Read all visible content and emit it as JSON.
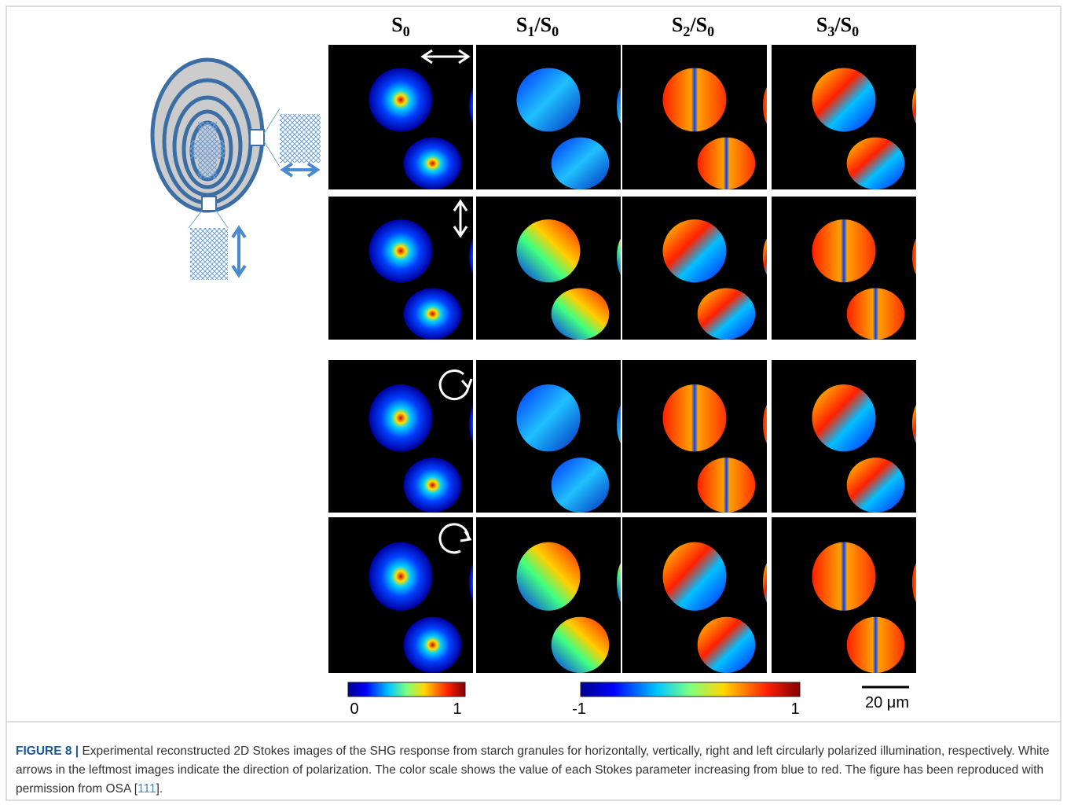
{
  "figure": {
    "headers": [
      [
        "S",
        "0"
      ],
      [
        "S",
        "1",
        "/S",
        "0"
      ],
      [
        "S",
        "2",
        "/S",
        "0"
      ],
      [
        "S",
        "3",
        "/S",
        "0"
      ]
    ],
    "colorbars": [
      {
        "min_label": "0",
        "max_label": "1"
      },
      {
        "min_label": "-1",
        "max_label": "1"
      }
    ],
    "scale_bar": "20 μm"
  },
  "caption": {
    "label": "FIGURE 8 |",
    "text_before": " Experimental reconstructed 2D Stokes images of the SHG response from starch granules for horizontally, vertically, right and left circularly polarized illumination, respectively. White arrows in the leftmost images indicate the direction of polarization. The color scale shows the value of each Stokes parameter increasing from blue to red. The figure has been reproduced with permission from OSA [",
    "ref": "111",
    "text_after": "]."
  }
}
